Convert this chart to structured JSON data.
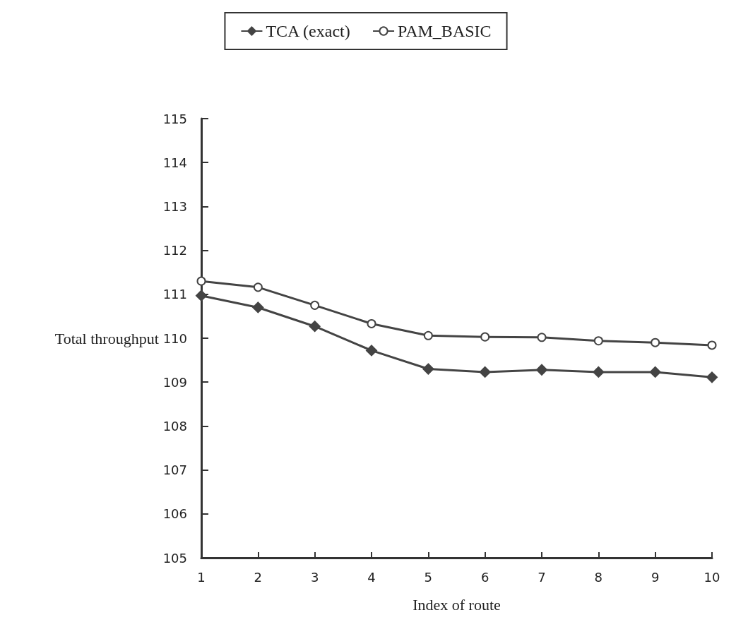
{
  "chart_data": {
    "type": "line",
    "xlabel": "Index of route",
    "ylabel": "Total throughput",
    "x": [
      1,
      2,
      3,
      4,
      5,
      6,
      7,
      8,
      9,
      10
    ],
    "series": [
      {
        "name": "TCA (exact)",
        "color": "#444444",
        "marker": "diamond",
        "values": [
          110.97,
          110.7,
          110.27,
          109.72,
          109.3,
          109.23,
          109.28,
          109.23,
          109.23,
          109.11
        ]
      },
      {
        "name": "PAM_BASIC",
        "color": "#444444",
        "marker": "circle",
        "values": [
          111.3,
          111.16,
          110.75,
          110.33,
          110.06,
          110.03,
          110.02,
          109.94,
          109.9,
          109.84
        ]
      }
    ],
    "xlim": [
      1,
      10
    ],
    "xticks": [
      1,
      2,
      3,
      4,
      5,
      6,
      7,
      8,
      9,
      10
    ],
    "ylim": [
      105,
      115
    ],
    "yticks": [
      105,
      106,
      107,
      108,
      109,
      110,
      111,
      112,
      113,
      114,
      115
    ],
    "grid": false,
    "legend": "top",
    "line_style": "solid"
  }
}
